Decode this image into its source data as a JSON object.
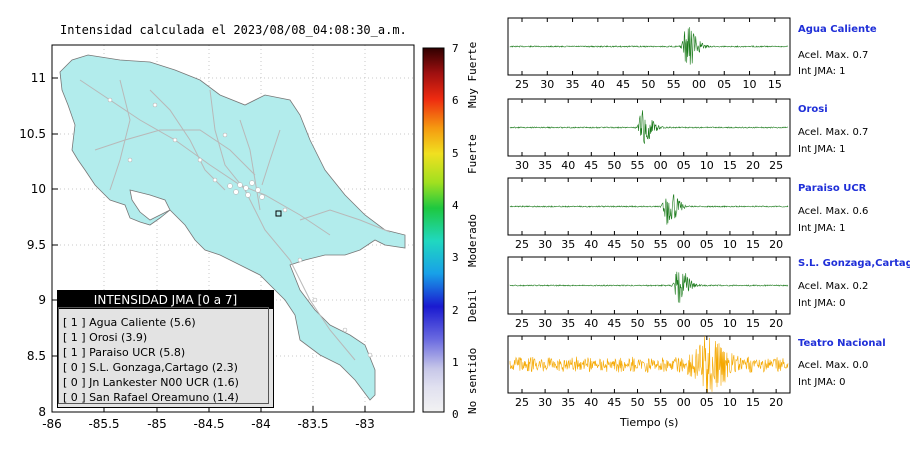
{
  "title": "Intensidad calculada el 2023/08/08_04:08:30_a.m.",
  "map": {
    "x_ticks": [
      "-86",
      "-85.5",
      "-85",
      "-84.5",
      "-84",
      "-83.5",
      "-83"
    ],
    "y_ticks": [
      "11",
      "10.5",
      "10",
      "9.5",
      "9",
      "8.5",
      "8"
    ],
    "land_color": "#b2ecec",
    "road_color": "#b8b8b8"
  },
  "colorbar": {
    "ticks": [
      "7",
      "6",
      "5",
      "4",
      "3",
      "2",
      "1",
      "0"
    ],
    "labels": [
      "Muy Fuerte",
      "Fuerte",
      "Moderado",
      "Debil",
      "No sentido"
    ]
  },
  "legend": {
    "title": "INTENSIDAD JMA [0 a 7]",
    "rows": [
      {
        "jma": "[ 1 ]",
        "name": "Agua Caliente (5.6)"
      },
      {
        "jma": "[ 1 ]",
        "name": "Orosi (3.9)"
      },
      {
        "jma": "[ 1 ]",
        "name": "Paraiso UCR (5.8)"
      },
      {
        "jma": "[ 0 ]",
        "name": "S.L. Gonzaga,Cartago (2.3)"
      },
      {
        "jma": "[ 0 ]",
        "name": "Jn Lankester N00 UCR (1.6)"
      },
      {
        "jma": "[ 0 ]",
        "name": "San Rafael Oreamuno (1.4)"
      }
    ]
  },
  "stations": [
    {
      "name": "Agua Caliente",
      "accel": "Acel. Max. 0.7",
      "jma": "Int JMA: 1",
      "ticks": [
        "25",
        "30",
        "35",
        "40",
        "45",
        "50",
        "55",
        "00",
        "05",
        "10",
        "15"
      ],
      "color": "#1a7a1a",
      "peak": 0.72
    },
    {
      "name": "Orosi",
      "accel": "Acel. Max. 0.7",
      "jma": "Int JMA: 1",
      "ticks": [
        "30",
        "35",
        "40",
        "45",
        "50",
        "55",
        "00",
        "05",
        "10",
        "15",
        "20",
        "25"
      ],
      "color": "#1a7a1a",
      "peak": 0.55
    },
    {
      "name": "Paraiso UCR",
      "accel": "Acel. Max. 0.6",
      "jma": "Int JMA: 1",
      "ticks": [
        "25",
        "30",
        "35",
        "40",
        "45",
        "50",
        "55",
        "00",
        "05",
        "10",
        "15",
        "20"
      ],
      "color": "#1a7a1a",
      "peak": 0.6
    },
    {
      "name": "S.L. Gonzaga,Cartago",
      "accel": "Acel. Max. 0.2",
      "jma": "Int JMA: 0",
      "ticks": [
        "25",
        "30",
        "35",
        "40",
        "45",
        "50",
        "55",
        "00",
        "05",
        "10",
        "15",
        "20"
      ],
      "color": "#1a7a1a",
      "peak": 0.6
    },
    {
      "name": "Teatro Nacional",
      "accel": "Acel. Max. 0.0",
      "jma": "Int JMA: 0",
      "ticks": [
        "25",
        "30",
        "35",
        "40",
        "45",
        "50",
        "55",
        "00",
        "05",
        "10",
        "15",
        "20"
      ],
      "color": "#f5a800",
      "peak": 0.5
    }
  ],
  "xlabel": "Tiempo (s)"
}
